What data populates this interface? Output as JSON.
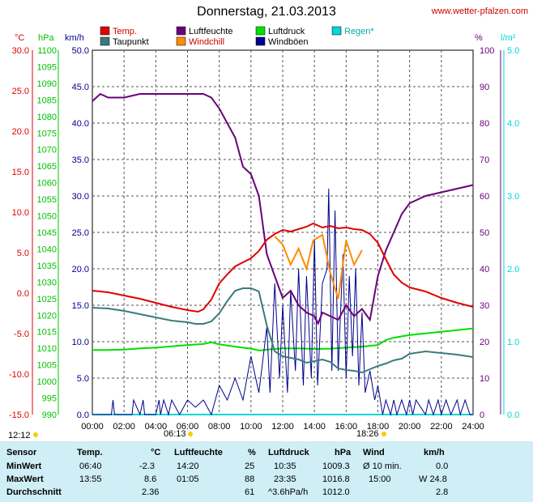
{
  "title": "Donnerstag, 21.03.2013",
  "website": "www.wetter-pfalzen.com",
  "colors": {
    "temp": "#e00000",
    "dew": "#3a7b7b",
    "humidity": "#6a007a",
    "windchill": "#ff8c00",
    "pressure": "#00e000",
    "gust": "#00008b",
    "rain": "#00d6d6"
  },
  "axes": {
    "temp_unit": "°C",
    "pressure_unit": "hPa",
    "wind_unit": "km/h",
    "humidity_unit": "%",
    "rain_unit": "l/m²",
    "temp_ticks": [
      "30.0",
      "25.0",
      "20.0",
      "15.0",
      "10.0",
      "5.0",
      "0.0",
      "-5.0",
      "-10.0",
      "-15.0"
    ],
    "pressure_ticks": [
      "1100",
      "1095",
      "1090",
      "1085",
      "1080",
      "1075",
      "1070",
      "1065",
      "1060",
      "1055",
      "1050",
      "1045",
      "1040",
      "1035",
      "1030",
      "1025",
      "1020",
      "1015",
      "1010",
      "1005",
      "1000",
      "995",
      "990"
    ],
    "wind_ticks": [
      "50.0",
      "45.0",
      "40.0",
      "35.0",
      "30.0",
      "25.0",
      "20.0",
      "15.0",
      "10.0",
      "5.0",
      "0.0"
    ],
    "humidity_ticks": [
      "100",
      "90",
      "80",
      "70",
      "60",
      "50",
      "40",
      "30",
      "20",
      "10",
      "0"
    ],
    "rain_ticks": [
      "5.0",
      "4.0",
      "3.0",
      "2.0",
      "1.0",
      "0.0"
    ],
    "time_ticks": [
      "00:00",
      "02:00",
      "04:00",
      "06:00",
      "08:00",
      "10:00",
      "12:00",
      "14:00",
      "16:00",
      "18:00",
      "20:00",
      "22:00",
      "24:00"
    ]
  },
  "sun": {
    "noon": "12:12",
    "sunrise": "06:13",
    "sunset": "18:26"
  },
  "chart_data": {
    "type": "line",
    "title": "Donnerstag, 21.03.2013",
    "x_range": [
      0,
      24
    ],
    "legend": [
      "Temp.",
      "Taupunkt",
      "Luftfeuchte",
      "Windchill",
      "Luftdruck",
      "Windböen",
      "Regen*"
    ],
    "series": [
      {
        "name": "Temp.",
        "unit": "°C",
        "x": [
          0,
          1,
          2,
          3,
          4,
          5,
          6,
          6.67,
          7,
          7.5,
          8,
          8.5,
          9,
          9.5,
          10,
          10.5,
          11,
          11.5,
          12,
          12.5,
          13,
          13.5,
          13.92,
          14.5,
          15,
          15.5,
          16,
          16.5,
          17,
          17.5,
          18,
          18.5,
          19,
          19.5,
          20,
          21,
          22,
          23,
          24
        ],
        "y": [
          0.3,
          0.1,
          -0.3,
          -0.7,
          -1.2,
          -1.7,
          -2.1,
          -2.3,
          -2.0,
          -0.8,
          1.2,
          2.3,
          3.3,
          3.8,
          4.3,
          5.2,
          6.6,
          7.3,
          7.8,
          7.6,
          7.9,
          8.2,
          8.6,
          8.1,
          8.3,
          8.0,
          8.1,
          7.9,
          7.8,
          7.3,
          6.2,
          4.2,
          2.3,
          1.3,
          0.7,
          0.2,
          -0.6,
          -1.2,
          -1.7
        ]
      },
      {
        "name": "Taupunkt",
        "unit": "°C",
        "x": [
          0,
          1,
          2,
          3,
          4,
          5,
          6,
          6.5,
          7,
          7.5,
          8,
          8.5,
          9,
          9.5,
          10,
          10.5,
          11,
          11.5,
          12,
          12.5,
          13,
          13.5,
          14,
          14.5,
          15,
          15.5,
          16,
          16.5,
          17,
          17.5,
          18,
          18.5,
          19,
          19.5,
          20,
          21,
          22,
          23,
          24
        ],
        "y": [
          -1.8,
          -1.9,
          -2.2,
          -2.6,
          -3.0,
          -3.4,
          -3.6,
          -3.8,
          -3.8,
          -3.5,
          -2.5,
          -1.0,
          0.3,
          0.6,
          0.6,
          0.2,
          -4.0,
          -7.2,
          -7.8,
          -8.0,
          -8.2,
          -8.6,
          -8.4,
          -8.2,
          -8.5,
          -9.3,
          -9.5,
          -9.6,
          -9.8,
          -9.4,
          -9.0,
          -8.7,
          -8.3,
          -8.1,
          -7.5,
          -7.2,
          -7.4,
          -7.6,
          -7.9
        ]
      },
      {
        "name": "Luftfeuchte",
        "unit": "%",
        "x": [
          0,
          0.5,
          1,
          2,
          3,
          4,
          5,
          6,
          7,
          7.5,
          8,
          8.5,
          9,
          9.5,
          10,
          10.5,
          11,
          11.5,
          12,
          12.5,
          13,
          13.5,
          14,
          14.23,
          14.5,
          15,
          15.5,
          16,
          16.5,
          17,
          17.5,
          18,
          18.5,
          19,
          19.5,
          20,
          21,
          22,
          23,
          24
        ],
        "y": [
          86,
          88,
          87,
          87,
          88,
          88,
          88,
          88,
          88,
          87,
          84,
          80,
          76,
          68,
          66,
          60,
          44,
          38,
          32,
          34,
          30,
          28,
          27,
          25,
          28,
          27,
          26,
          30,
          27,
          29,
          26,
          38,
          45,
          50,
          55,
          58,
          60,
          61,
          62,
          63
        ]
      },
      {
        "name": "Windchill",
        "unit": "°C",
        "x": [
          11.5,
          12,
          12.5,
          13,
          13.5,
          13.92,
          14.5,
          15,
          15.5,
          16,
          16.5,
          17
        ],
        "y": [
          7.0,
          6.0,
          3.5,
          5.5,
          3.0,
          6.5,
          7.2,
          2.5,
          -0.7,
          6.5,
          3.5,
          5.3
        ]
      },
      {
        "name": "Luftdruck",
        "unit": "hPa",
        "x": [
          0,
          1,
          2,
          3,
          4,
          5,
          6,
          7,
          7.5,
          8,
          9,
          10,
          10.58,
          11,
          12,
          13,
          14,
          15,
          16,
          17,
          18,
          18.5,
          19,
          20,
          21,
          22,
          23,
          24
        ],
        "y": [
          1009.5,
          1009.5,
          1009.6,
          1010.0,
          1010.2,
          1010.6,
          1011.0,
          1011.3,
          1011.8,
          1011.2,
          1010.5,
          1009.9,
          1009.3,
          1009.6,
          1010.0,
          1010.0,
          1009.8,
          1009.9,
          1010.2,
          1010.5,
          1011.0,
          1012.5,
          1013.2,
          1014.0,
          1014.5,
          1015.0,
          1015.5,
          1016.0
        ]
      },
      {
        "name": "Windböen",
        "unit": "km/h",
        "x": [
          0,
          1.2,
          1.3,
          1.4,
          2.5,
          2.6,
          3,
          3.2,
          3.3,
          4,
          4.2,
          4.3,
          4.5,
          4.8,
          5,
          5.5,
          6,
          6.5,
          7,
          7.5,
          8,
          8.5,
          9,
          9.5,
          10,
          10.5,
          11,
          11.2,
          11.5,
          11.8,
          12,
          12.3,
          12.5,
          12.8,
          13,
          13.3,
          13.5,
          13.8,
          14,
          14.2,
          14.5,
          14.8,
          14.9,
          15.1,
          15.3,
          15.5,
          15.8,
          16,
          16.2,
          16.4,
          16.6,
          16.8,
          17,
          17.2,
          17.5,
          17.8,
          18,
          18.3,
          18.5,
          18.8,
          19,
          19.2,
          19.5,
          19.8,
          20,
          20.2,
          20.4,
          21,
          21.2,
          21.5,
          21.8,
          22,
          22.3,
          22.6,
          23,
          23.2,
          23.5,
          23.8,
          24
        ],
        "y": [
          0,
          0,
          2,
          0,
          0,
          2,
          0,
          2,
          0,
          0,
          2,
          0,
          2,
          0,
          2,
          0,
          2,
          1,
          2,
          0,
          4,
          2,
          5,
          2,
          8,
          3,
          12,
          3,
          18,
          5,
          15,
          3,
          17,
          6,
          20,
          4,
          19,
          5,
          24,
          4,
          18,
          20,
          31,
          6,
          28,
          6,
          22,
          5,
          19,
          8,
          20,
          4,
          14,
          3,
          6,
          2,
          4,
          0,
          2,
          0,
          2,
          0,
          2,
          0,
          2,
          0,
          2,
          0,
          2,
          0,
          2,
          0,
          2,
          0,
          2,
          0,
          2,
          0,
          0
        ]
      },
      {
        "name": "Regen*",
        "unit": "l/m²",
        "x": [
          0,
          24
        ],
        "y": [
          0,
          0
        ]
      }
    ]
  },
  "stats": {
    "headers": {
      "sensor": "Sensor",
      "temp": "Temp.",
      "temp_unit": "°C",
      "hum": "Luftfeuchte",
      "hum_unit": "%",
      "press": "Luftdruck",
      "press_unit": "hPa",
      "wind": "Wind",
      "wind_unit": "km/h"
    },
    "min": {
      "label": "MinWert",
      "temp_time": "06:40",
      "temp": "-2.3",
      "hum_time": "14:20",
      "hum": "25",
      "press_time": "10:35",
      "press": "1009.3",
      "wind_label": "Ø 10 min.",
      "wind": "0.0"
    },
    "max": {
      "label": "MaxWert",
      "temp_time": "13:55",
      "temp": "8.6",
      "hum_time": "01:05",
      "hum": "88",
      "press_time": "23:35",
      "press": "1016.8",
      "wind_label": "15:00",
      "wind": "W 24.8"
    },
    "avg": {
      "label": "Durchschnitt",
      "temp": "2.36",
      "hum": "61",
      "press_trend": "^3.6hPa/h",
      "press": "1012.0",
      "wind": "2.8"
    }
  }
}
